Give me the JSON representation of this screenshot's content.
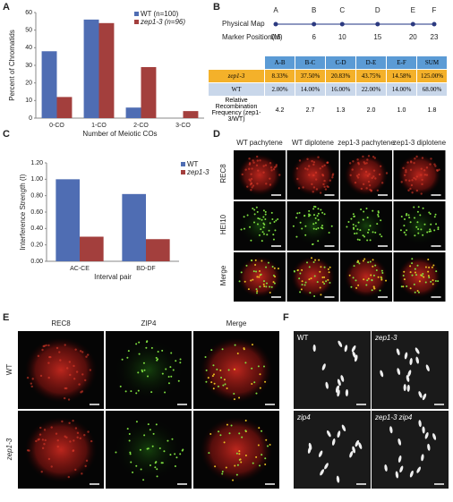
{
  "chart_data": [
    {
      "panel": "A",
      "type": "bar",
      "categories": [
        "0-CO",
        "1-CO",
        "2-CO",
        "3-CO"
      ],
      "series": [
        {
          "name": "WT (n=100)",
          "color": "#4f6db3",
          "values": [
            38,
            56,
            6,
            0
          ]
        },
        {
          "name": "zep1-3 (n=96)",
          "color": "#a33f3d",
          "values": [
            12,
            54,
            29,
            4
          ]
        }
      ],
      "ylim": [
        0,
        60
      ],
      "yticks": [
        0,
        10,
        20,
        30,
        40,
        50,
        60
      ],
      "ylabel": "Percent of Chromatids",
      "xlabel": "Number of Meiotic COs",
      "legend": "upper right"
    },
    {
      "panel": "C",
      "type": "bar",
      "categories": [
        "AC-CE",
        "BD-DF"
      ],
      "series": [
        {
          "name": "WT",
          "color": "#4f6db3",
          "values": [
            1.0,
            0.82
          ]
        },
        {
          "name": "zep1-3",
          "color": "#a33f3d",
          "values": [
            0.3,
            0.27
          ]
        }
      ],
      "ylim": [
        0,
        1.2
      ],
      "yticks": [
        {
          "value": 0,
          "label": "0.00"
        },
        {
          "value": 0.2,
          "label": "0.20"
        },
        {
          "value": 0.4,
          "label": "0.40"
        },
        {
          "value": 0.6,
          "label": "0.60"
        },
        {
          "value": 0.8,
          "label": "0.80"
        },
        {
          "value": 1.0,
          "label": "1.00"
        },
        {
          "value": 1.2,
          "label": "1.20"
        }
      ],
      "ylabel": "Interference Strength (I)",
      "xlabel": "Interval pair",
      "legend": "upper right"
    }
  ],
  "panel_b": {
    "panel": "B",
    "map_title": "Physical Map",
    "axis_label": "Marker Position(M)",
    "markers": [
      {
        "name": "A",
        "position": 0.6
      },
      {
        "name": "B",
        "position": 6
      },
      {
        "name": "C",
        "position": 10
      },
      {
        "name": "D",
        "position": 15
      },
      {
        "name": "E",
        "position": 20
      },
      {
        "name": "F",
        "position": 23
      }
    ],
    "table": {
      "header": [
        "A-B",
        "B-C",
        "C-D",
        "D-E",
        "E-F",
        "SUM"
      ],
      "rows": [
        {
          "label": "zep1-3",
          "cells": [
            "8.33%",
            "37.50%",
            "20.83%",
            "43.75%",
            "14.58%",
            "125.00%"
          ]
        },
        {
          "label": "WT",
          "cells": [
            "2.00%",
            "14.00%",
            "16.00%",
            "22.00%",
            "14.00%",
            "68.00%"
          ]
        },
        {
          "label": "Relative Recombination Frequency (zep1-3/WT)",
          "cells": [
            "4.2",
            "2.7",
            "1.3",
            "2.0",
            "1.0",
            "1.8"
          ]
        }
      ]
    }
  },
  "panel_d": {
    "panel": "D",
    "columns": [
      "WT pachytene",
      "WT diplotene",
      "zep1-3 pachytene",
      "zep1-3 diplotene"
    ],
    "rows": [
      "REC8",
      "HEI10",
      "Merge"
    ]
  },
  "panel_e": {
    "panel": "E",
    "columns": [
      "REC8",
      "ZIP4",
      "Merge"
    ],
    "rows": [
      "WT",
      "zep1-3"
    ]
  },
  "panel_f": {
    "panel": "F",
    "labels": [
      "WT",
      "zep1-3",
      "zip4",
      "zep1-3 zip4"
    ]
  }
}
